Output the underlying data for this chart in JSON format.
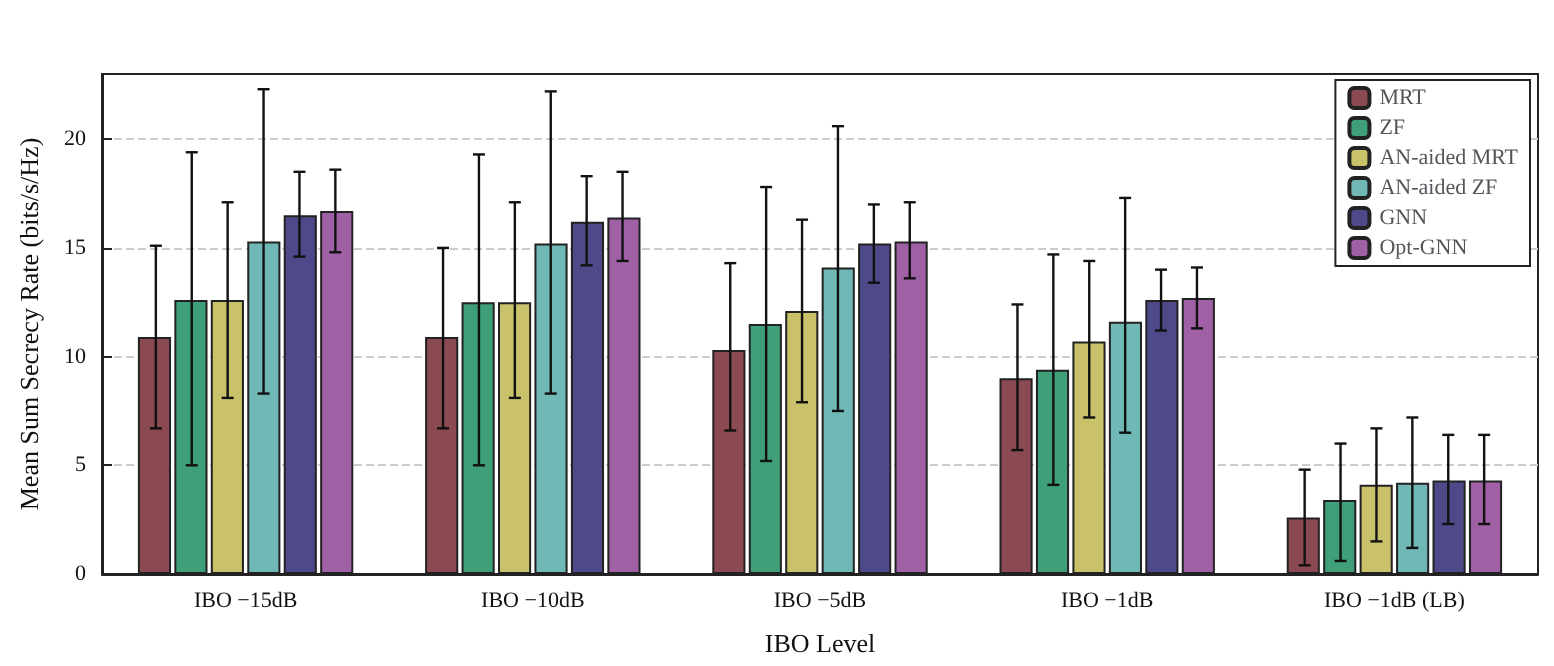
{
  "chart_data": {
    "type": "bar",
    "xlabel": "IBO Level",
    "ylabel": "Mean Sum Secrecy Rate (bits/s/Hz)",
    "categories": [
      "IBO −15dB",
      "IBO −10dB",
      "IBO −5dB",
      "IBO −1dB",
      "IBO −1dB (LB)"
    ],
    "series": [
      {
        "name": "MRT",
        "color": "#8b4a52",
        "values": [
          10.9,
          10.9,
          10.3,
          9.0,
          2.6
        ],
        "errors": [
          [
            6.7,
            15.1
          ],
          [
            6.7,
            15.0
          ],
          [
            6.6,
            14.3
          ],
          [
            5.7,
            12.4
          ],
          [
            0.4,
            4.8
          ]
        ]
      },
      {
        "name": "ZF",
        "color": "#3f9f78",
        "values": [
          12.6,
          12.5,
          11.5,
          9.4,
          3.4
        ],
        "errors": [
          [
            5.0,
            19.4
          ],
          [
            5.0,
            19.3
          ],
          [
            5.2,
            17.8
          ],
          [
            4.1,
            14.7
          ],
          [
            0.6,
            6.0
          ]
        ]
      },
      {
        "name": "AN-aided MRT",
        "color": "#c9c26a",
        "values": [
          12.6,
          12.5,
          12.1,
          10.7,
          4.1
        ],
        "errors": [
          [
            8.1,
            17.1
          ],
          [
            8.1,
            17.1
          ],
          [
            7.9,
            16.3
          ],
          [
            7.2,
            14.4
          ],
          [
            1.5,
            6.7
          ]
        ]
      },
      {
        "name": "AN-aided ZF",
        "color": "#6fb8b5",
        "values": [
          15.3,
          15.2,
          14.1,
          11.6,
          4.2
        ],
        "errors": [
          [
            8.3,
            22.3
          ],
          [
            8.3,
            22.2
          ],
          [
            7.5,
            20.6
          ],
          [
            6.5,
            17.3
          ],
          [
            1.2,
            7.2
          ]
        ]
      },
      {
        "name": "GNN",
        "color": "#4e4a8a",
        "values": [
          16.5,
          16.2,
          15.2,
          12.6,
          4.3
        ],
        "errors": [
          [
            14.6,
            18.5
          ],
          [
            14.2,
            18.3
          ],
          [
            13.4,
            17.0
          ],
          [
            11.2,
            14.0
          ],
          [
            2.3,
            6.4
          ]
        ]
      },
      {
        "name": "Opt-GNN",
        "color": "#a060a6",
        "values": [
          16.7,
          16.4,
          15.3,
          12.7,
          4.3
        ],
        "errors": [
          [
            14.8,
            18.6
          ],
          [
            14.4,
            18.5
          ],
          [
            13.6,
            17.1
          ],
          [
            11.3,
            14.1
          ],
          [
            2.3,
            6.4
          ]
        ]
      }
    ],
    "ylim": [
      0,
      23
    ],
    "yticks": [
      0,
      5,
      10,
      15,
      20
    ],
    "grid": "y",
    "legend": "top right"
  }
}
